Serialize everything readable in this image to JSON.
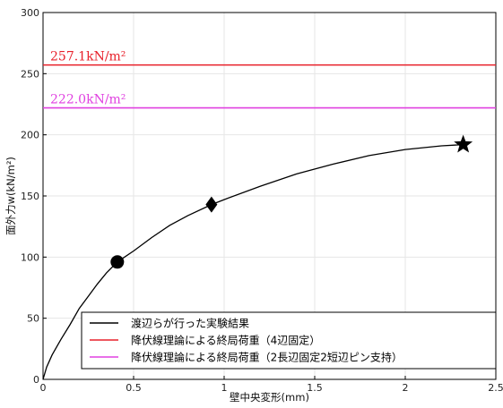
{
  "chart_data": {
    "type": "line",
    "xlabel": "壁中央変形(mm)",
    "ylabel": "面外力w(kN/m²)",
    "xlim": [
      0,
      2.5
    ],
    "ylim": [
      0,
      300
    ],
    "xticks": [
      0,
      0.5,
      1,
      1.5,
      2,
      2.5
    ],
    "xtick_labels": [
      "0",
      "0.5",
      "1",
      "1.5",
      "2",
      "2.5"
    ],
    "yticks": [
      0,
      50,
      100,
      150,
      200,
      250,
      300
    ],
    "ytick_labels": [
      "0",
      "50",
      "100",
      "150",
      "200",
      "250",
      "300"
    ],
    "grid": true,
    "legend_position": "bottom",
    "series": [
      {
        "name": "渡辺らが行った実験結果",
        "color": "#000000",
        "type": "line",
        "x": [
          0,
          0.02,
          0.05,
          0.1,
          0.15,
          0.2,
          0.25,
          0.3,
          0.35,
          0.41,
          0.5,
          0.6,
          0.7,
          0.8,
          0.93,
          1.0,
          1.2,
          1.4,
          1.6,
          1.8,
          2.0,
          2.2,
          2.32
        ],
        "y": [
          0,
          10,
          20,
          33,
          45,
          58,
          68,
          78,
          87,
          96,
          105,
          116,
          126,
          134,
          143,
          147,
          158,
          168,
          176,
          183,
          188,
          191,
          192
        ],
        "markers": [
          {
            "x": 0.41,
            "y": 96,
            "shape": "circle"
          },
          {
            "x": 0.93,
            "y": 143,
            "shape": "diamond"
          },
          {
            "x": 2.32,
            "y": 192,
            "shape": "star"
          }
        ]
      },
      {
        "name": "降伏線理論による終局荷重（4辺固定）",
        "color": "#e8202a",
        "type": "hline",
        "y": 257.1,
        "label": "257.1kN/m²"
      },
      {
        "name": "降伏線理論による終局荷重（2長辺固定2短辺ピン支持）",
        "color": "#e040e0",
        "type": "hline",
        "y": 222.0,
        "label": "222.0kN/m²"
      }
    ]
  }
}
